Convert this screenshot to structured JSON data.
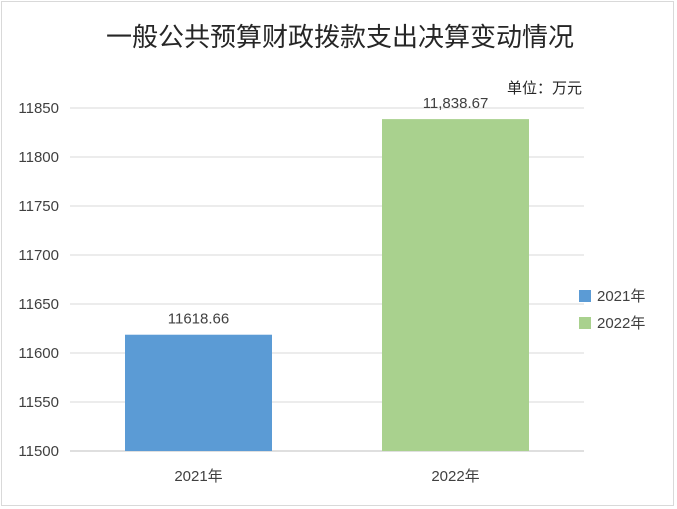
{
  "chart_data": {
    "type": "bar",
    "title": "一般公共预算财政拨款支出决算变动情况",
    "unit_note": "单位：万元",
    "categories": [
      "2021年",
      "2022年"
    ],
    "values": [
      11618.66,
      11838.67
    ],
    "data_labels": [
      "11618.66",
      "11,838.67"
    ],
    "colors": [
      "#5b9bd5",
      "#a9d18e"
    ],
    "ylim": [
      11500,
      11850
    ],
    "yticks": [
      11500,
      11550,
      11600,
      11650,
      11700,
      11750,
      11800,
      11850
    ],
    "grid": true,
    "legend": {
      "position": "right",
      "entries": [
        "2021年",
        "2022年"
      ]
    }
  }
}
